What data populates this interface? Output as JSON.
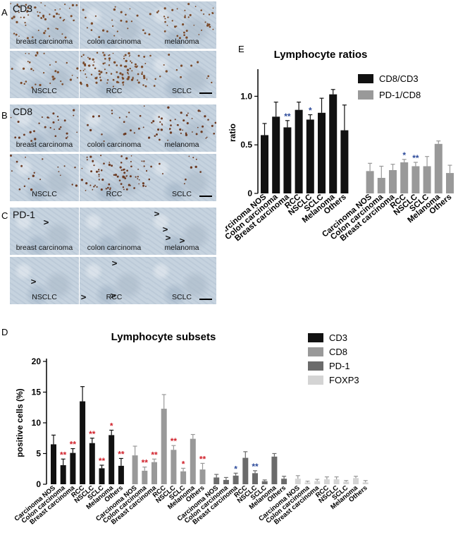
{
  "panels": {
    "A": {
      "letter": "A",
      "marker": "CD3",
      "tiles": [
        "breast carcinoma",
        "colon carcinoma",
        "melanoma",
        "NSCLC",
        "RCC",
        "SCLC"
      ]
    },
    "B": {
      "letter": "B",
      "marker": "CD8",
      "tiles": [
        "breast carcinoma",
        "colon carcinoma",
        "melanoma",
        "NSCLC",
        "RCC",
        "SCLC"
      ]
    },
    "C": {
      "letter": "C",
      "marker": "PD-1",
      "tiles": [
        "breast carcinoma",
        "colon carcinoma",
        "melanoma",
        "NSCLC",
        "RCC",
        "SCLC"
      ]
    },
    "D": {
      "letter": "D"
    },
    "E": {
      "letter": "E"
    }
  },
  "colors": {
    "black": "#111111",
    "gray": "#999999",
    "dark_gray": "#6b6b6b",
    "light_gray": "#d4d4d4",
    "star_red": "#d0202a",
    "star_blue": "#2c4a9a"
  },
  "chart_data": [
    {
      "id": "D",
      "type": "bar",
      "title": "Lymphocyte subsets",
      "ylabel": "positive cells (%)",
      "ylim": [
        0,
        20
      ],
      "yticks": [
        "0",
        "5",
        "10",
        "15",
        "20"
      ],
      "categories": [
        "Carcinoma NOS",
        "Colon carcinoma",
        "Breast carcinoma",
        "RCC",
        "NSCLC",
        "SCLC",
        "Melanoma",
        "Others"
      ],
      "legend_position": "top-right",
      "series": [
        {
          "name": "CD3",
          "color": "#111111",
          "values": [
            6.5,
            3.1,
            5.1,
            13.5,
            6.7,
            2.6,
            8.0,
            3.0
          ],
          "errors": [
            1.5,
            1.0,
            0.7,
            2.4,
            0.8,
            0.5,
            0.8,
            1.2
          ],
          "stars": [
            "",
            "**",
            "**",
            "",
            "**",
            "**",
            "*",
            "**"
          ]
        },
        {
          "name": "CD8",
          "color": "#999999",
          "values": [
            4.7,
            2.2,
            3.6,
            12.3,
            5.6,
            2.1,
            7.4,
            2.4
          ],
          "errors": [
            1.5,
            0.6,
            0.5,
            2.3,
            0.7,
            0.5,
            0.7,
            1.0
          ],
          "stars": [
            "",
            "**",
            "**",
            "",
            "**",
            "*",
            "",
            "**"
          ]
        },
        {
          "name": "PD-1",
          "color": "#6b6b6b",
          "values": [
            1.1,
            0.7,
            1.4,
            4.3,
            1.8,
            0.5,
            4.5,
            0.9
          ],
          "errors": [
            0.5,
            0.4,
            0.4,
            1.0,
            0.4,
            0.2,
            0.5,
            0.4
          ],
          "stars": [
            "",
            "",
            "*",
            "",
            "**",
            "",
            "",
            ""
          ]
        },
        {
          "name": "FOXP3",
          "color": "#d4d4d4",
          "values": [
            0.9,
            0.3,
            0.5,
            0.8,
            0.8,
            0.4,
            1.0,
            0.3
          ],
          "errors": [
            0.5,
            0.2,
            0.3,
            0.4,
            0.4,
            0.2,
            0.3,
            0.3
          ],
          "stars": [
            "",
            "",
            "",
            "",
            "",
            "",
            "",
            ""
          ]
        }
      ]
    },
    {
      "id": "E",
      "type": "bar",
      "title": "Lymphocyte ratios",
      "ylabel": "ratio",
      "ylim": [
        0,
        1.25
      ],
      "yticks": [
        "0",
        "0.5",
        "1.0"
      ],
      "ytick_values": [
        0,
        0.5,
        1.0
      ],
      "categories": [
        "Carcinoma NOS",
        "Colon carcinoma",
        "Breast carcinoma",
        "RCC",
        "NSCLC",
        "SCLC",
        "Melanoma",
        "Others"
      ],
      "legend_position": "top-right",
      "series": [
        {
          "name": "CD8/CD3",
          "color": "#111111",
          "values": [
            0.6,
            0.79,
            0.68,
            0.86,
            0.76,
            0.83,
            1.02,
            0.65
          ],
          "errors": [
            0.12,
            0.15,
            0.07,
            0.08,
            0.05,
            0.15,
            0.05,
            0.26
          ],
          "stars": [
            "",
            "",
            "**",
            "",
            "*",
            "",
            "",
            ""
          ]
        },
        {
          "name": "PD-1/CD8",
          "color": "#999999",
          "values": [
            0.23,
            0.16,
            0.24,
            0.32,
            0.28,
            0.28,
            0.51,
            0.21
          ],
          "errors": [
            0.08,
            0.12,
            0.06,
            0.03,
            0.04,
            0.1,
            0.03,
            0.08
          ],
          "stars": [
            "",
            "",
            "",
            "*",
            "**",
            "",
            "",
            ""
          ]
        }
      ]
    }
  ]
}
